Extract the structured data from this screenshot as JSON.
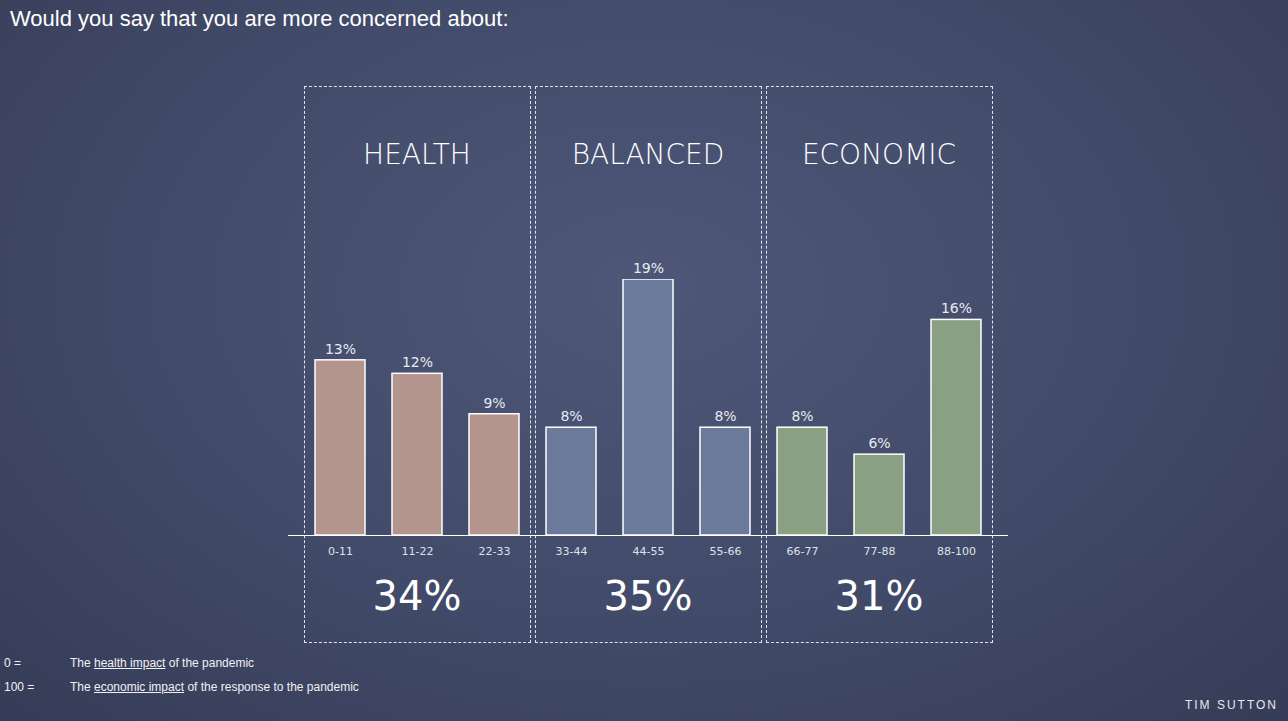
{
  "chart_data": {
    "type": "bar",
    "title": "Would you say that you are more concerned about:",
    "categories": [
      "0-11",
      "11-22",
      "22-33",
      "33-44",
      "44-55",
      "55-66",
      "66-77",
      "77-88",
      "88-100"
    ],
    "values": [
      13,
      12,
      9,
      8,
      19,
      8,
      8,
      6,
      16
    ],
    "value_labels": [
      "13%",
      "12%",
      "9%",
      "8%",
      "19%",
      "8%",
      "8%",
      "6%",
      "16%"
    ],
    "colors": [
      "#b3958e",
      "#b3958e",
      "#b3958e",
      "#6b7a9a",
      "#6b7a9a",
      "#6b7a9a",
      "#8aa083",
      "#8aa083",
      "#8aa083"
    ],
    "ylim": [
      0,
      19
    ],
    "data_labels": true,
    "tick_labels": "x",
    "grid": false,
    "groups": [
      {
        "name": "HEALTH",
        "categories": [
          "0-11",
          "11-22",
          "22-33"
        ],
        "total": 34,
        "total_label": "34%"
      },
      {
        "name": "BALANCED",
        "categories": [
          "33-44",
          "44-55",
          "55-66"
        ],
        "total": 35,
        "total_label": "35%"
      },
      {
        "name": "ECONOMIC",
        "categories": [
          "66-77",
          "77-88",
          "88-100"
        ],
        "total": 31,
        "total_label": "31%"
      }
    ],
    "notes": [
      {
        "key": "0 =",
        "text": "The health impact of the pandemic",
        "underlined": "health impact"
      },
      {
        "key": "100 =",
        "text": "The economic impact of the response to the pandemic",
        "underlined": "economic impact"
      }
    ],
    "credit": "TIM SUTTON"
  }
}
